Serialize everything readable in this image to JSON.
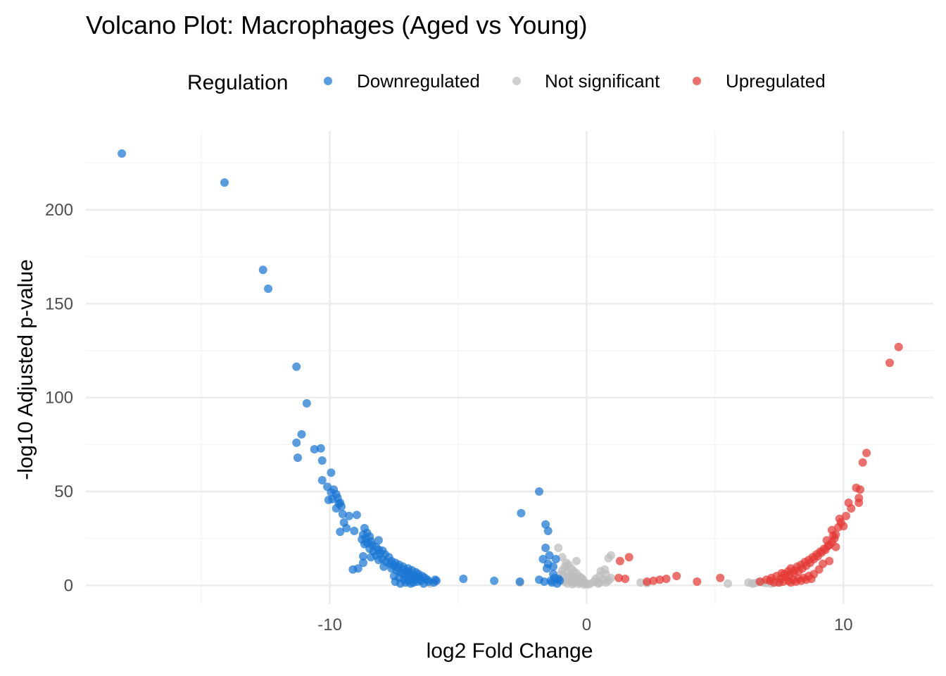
{
  "chart_data": {
    "type": "scatter",
    "title": "Volcano Plot: Macrophages (Aged vs Young)",
    "xlabel": "log2 Fold Change",
    "ylabel": "-log10 Adjusted p-value",
    "xlim": [
      -19.5,
      13.5
    ],
    "ylim": [
      -10,
      242
    ],
    "x_ticks": [
      -10,
      0,
      10
    ],
    "y_ticks": [
      0,
      50,
      100,
      150,
      200
    ],
    "grid": true,
    "legend": {
      "title": "Regulation",
      "position": "top",
      "entries": [
        "Downregulated",
        "Not significant",
        "Upregulated"
      ]
    },
    "colors": {
      "Downregulated": "#1976d2",
      "Not significant": "#bdbdbd",
      "Upregulated": "#e53935"
    },
    "series": [
      {
        "name": "Downregulated",
        "color": "#1976d2",
        "points": [
          [
            -18.1,
            230
          ],
          [
            -14.1,
            214.5
          ],
          [
            -12.6,
            168
          ],
          [
            -12.4,
            158
          ],
          [
            -11.3,
            116.5
          ],
          [
            -10.9,
            97
          ],
          [
            -11.1,
            80.5
          ],
          [
            -11.3,
            76
          ],
          [
            -11.25,
            68
          ],
          [
            -10.6,
            72.5
          ],
          [
            -10.35,
            73
          ],
          [
            -10.3,
            66.5
          ],
          [
            -10.3,
            56
          ],
          [
            -9.95,
            60
          ],
          [
            -10.1,
            52.5
          ],
          [
            -9.85,
            51
          ],
          [
            -9.95,
            49.5
          ],
          [
            -9.9,
            46
          ],
          [
            -10.05,
            45.5
          ],
          [
            -9.75,
            48.5
          ],
          [
            -9.7,
            46.5
          ],
          [
            -9.6,
            44
          ],
          [
            -9.55,
            42
          ],
          [
            -9.75,
            41
          ],
          [
            -9.65,
            43.5
          ],
          [
            -9.5,
            38
          ],
          [
            -9.25,
            37
          ],
          [
            -9.45,
            33.5
          ],
          [
            -8.95,
            37.5
          ],
          [
            -9.6,
            28.5
          ],
          [
            -9.35,
            30.5
          ],
          [
            -9.05,
            29
          ],
          [
            -8.65,
            30.5
          ],
          [
            -8.55,
            28
          ],
          [
            -8.7,
            27
          ],
          [
            -8.45,
            26
          ],
          [
            -8.6,
            25
          ],
          [
            -8.75,
            24.5
          ],
          [
            -8.4,
            23.5
          ],
          [
            -8.55,
            22.5
          ],
          [
            -8.35,
            21.5
          ],
          [
            -8.65,
            22
          ],
          [
            -8.1,
            24
          ],
          [
            -8.2,
            20.5
          ],
          [
            -8.45,
            19.5
          ],
          [
            -8.1,
            19
          ],
          [
            -8.3,
            18
          ],
          [
            -7.95,
            18.5
          ],
          [
            -8.05,
            17
          ],
          [
            -8.2,
            16
          ],
          [
            -7.85,
            16.5
          ],
          [
            -8.7,
            15.5
          ],
          [
            -8.4,
            15
          ],
          [
            -7.7,
            15
          ],
          [
            -7.95,
            14
          ],
          [
            -8.1,
            13.5
          ],
          [
            -7.6,
            13
          ],
          [
            -7.8,
            12.5
          ],
          [
            -7.45,
            12
          ],
          [
            -7.65,
            11.5
          ],
          [
            -7.3,
            11
          ],
          [
            -7.5,
            10.5
          ],
          [
            -7.9,
            10
          ],
          [
            -7.15,
            10
          ],
          [
            -7.35,
            9.5
          ],
          [
            -7.6,
            9
          ],
          [
            -6.95,
            9
          ],
          [
            -7.1,
            8.5
          ],
          [
            -7.4,
            8
          ],
          [
            -6.8,
            8
          ],
          [
            -7.0,
            7.5
          ],
          [
            -7.25,
            7
          ],
          [
            -6.65,
            7
          ],
          [
            -6.9,
            6.5
          ],
          [
            -7.15,
            6
          ],
          [
            -6.55,
            6
          ],
          [
            -6.75,
            5.5
          ],
          [
            -7.5,
            5
          ],
          [
            -7.0,
            5
          ],
          [
            -6.4,
            5
          ],
          [
            -6.6,
            4.5
          ],
          [
            -6.85,
            4
          ],
          [
            -7.3,
            4
          ],
          [
            -6.3,
            4
          ],
          [
            -6.5,
            3.5
          ],
          [
            -6.7,
            3
          ],
          [
            -7.1,
            3
          ],
          [
            -6.2,
            3
          ],
          [
            -6.45,
            2.5
          ],
          [
            -6.95,
            2.5
          ],
          [
            -7.45,
            2
          ],
          [
            -6.6,
            2
          ],
          [
            -6.15,
            2
          ],
          [
            -7.05,
            1.5
          ],
          [
            -6.75,
            1.5
          ],
          [
            -7.25,
            1
          ],
          [
            -6.35,
            1
          ],
          [
            -6.85,
            1
          ],
          [
            -8.9,
            9
          ],
          [
            -8.7,
            12
          ],
          [
            -9.1,
            8.5
          ],
          [
            -5.9,
            3
          ],
          [
            -5.85,
            2.5
          ],
          [
            -5.95,
            1.5
          ],
          [
            -4.8,
            3.5
          ],
          [
            -3.6,
            2.5
          ],
          [
            -2.6,
            2
          ],
          [
            -2.55,
            38.5
          ],
          [
            -1.85,
            50
          ],
          [
            -1.6,
            32.5
          ],
          [
            -1.5,
            29
          ],
          [
            -1.6,
            20
          ],
          [
            -1.45,
            16
          ],
          [
            -1.7,
            14
          ],
          [
            -1.5,
            11.5
          ],
          [
            -1.55,
            9
          ],
          [
            -1.85,
            3
          ],
          [
            -1.65,
            2
          ],
          [
            -1.4,
            2.5
          ],
          [
            -1.2,
            14
          ],
          [
            -1.3,
            10
          ],
          [
            -1.05,
            2.5
          ],
          [
            -1.3,
            6
          ],
          [
            -1.25,
            4
          ],
          [
            -1.1,
            3.5
          ],
          [
            -1.35,
            1.5
          ],
          [
            -1.15,
            1
          ]
        ]
      },
      {
        "name": "Not significant",
        "color": "#bdbdbd",
        "points": [
          [
            -6.1,
            1
          ],
          [
            -2.6,
            1.5
          ],
          [
            -1.1,
            20
          ],
          [
            -0.95,
            15
          ],
          [
            -0.8,
            12
          ],
          [
            -0.7,
            11
          ],
          [
            -0.85,
            10
          ],
          [
            -0.6,
            9
          ],
          [
            -0.95,
            8
          ],
          [
            -0.5,
            7.5
          ],
          [
            -0.75,
            7
          ],
          [
            -1.0,
            6
          ],
          [
            -0.4,
            6.5
          ],
          [
            -0.65,
            5.5
          ],
          [
            -0.9,
            5
          ],
          [
            -0.3,
            5
          ],
          [
            -0.55,
            4.5
          ],
          [
            -0.8,
            4
          ],
          [
            -0.2,
            4
          ],
          [
            -0.45,
            3.5
          ],
          [
            -0.7,
            3
          ],
          [
            -1.0,
            3
          ],
          [
            -0.15,
            3
          ],
          [
            -0.35,
            2.5
          ],
          [
            -0.6,
            2
          ],
          [
            -0.85,
            2
          ],
          [
            -0.1,
            2
          ],
          [
            -0.25,
            1.5
          ],
          [
            -0.5,
            1.5
          ],
          [
            -0.75,
            1
          ],
          [
            -0.05,
            1
          ],
          [
            -0.3,
            0.8
          ],
          [
            -0.55,
            0.6
          ],
          [
            0.05,
            0.5
          ],
          [
            -0.1,
            0.4
          ],
          [
            -0.4,
            13
          ],
          [
            0.95,
            16
          ],
          [
            0.85,
            14.5
          ],
          [
            0.7,
            8.5
          ],
          [
            0.55,
            7.5
          ],
          [
            0.75,
            6
          ],
          [
            0.5,
            5
          ],
          [
            0.95,
            4
          ],
          [
            0.35,
            3.5
          ],
          [
            0.65,
            3
          ],
          [
            0.85,
            2.5
          ],
          [
            0.3,
            2
          ],
          [
            0.5,
            1.5
          ],
          [
            0.75,
            1.5
          ],
          [
            0.15,
            1
          ],
          [
            0.45,
            1
          ],
          [
            2.1,
            1.5
          ],
          [
            2.35,
            1.2
          ],
          [
            5.5,
            1
          ],
          [
            6.3,
            1.5
          ],
          [
            6.55,
            1.2
          ],
          [
            6.7,
            1.8
          ],
          [
            6.85,
            1.5
          ],
          [
            7.0,
            1.2
          ],
          [
            6.45,
            1
          ],
          [
            7.2,
            1
          ],
          [
            7.45,
            1.5
          ]
        ]
      },
      {
        "name": "Upregulated",
        "color": "#e53935",
        "points": [
          [
            1.3,
            13
          ],
          [
            1.65,
            15
          ],
          [
            1.25,
            4
          ],
          [
            1.5,
            3.5
          ],
          [
            2.35,
            2
          ],
          [
            2.6,
            2.5
          ],
          [
            2.85,
            3
          ],
          [
            3.1,
            3.5
          ],
          [
            3.5,
            5
          ],
          [
            4.3,
            2
          ],
          [
            5.2,
            4
          ],
          [
            6.75,
            2
          ],
          [
            7.0,
            3
          ],
          [
            7.2,
            4
          ],
          [
            7.4,
            5
          ],
          [
            7.15,
            2.5
          ],
          [
            7.55,
            3.5
          ],
          [
            7.7,
            6
          ],
          [
            7.85,
            7.5
          ],
          [
            7.6,
            6.5
          ],
          [
            7.95,
            9
          ],
          [
            8.1,
            8
          ],
          [
            7.75,
            4.5
          ],
          [
            8.2,
            10
          ],
          [
            7.9,
            5.5
          ],
          [
            8.35,
            11
          ],
          [
            8.05,
            6.5
          ],
          [
            8.5,
            12.5
          ],
          [
            8.25,
            7.5
          ],
          [
            8.65,
            13.5
          ],
          [
            8.4,
            9
          ],
          [
            8.8,
            15
          ],
          [
            8.55,
            10.5
          ],
          [
            8.95,
            16.5
          ],
          [
            8.7,
            12
          ],
          [
            9.1,
            18
          ],
          [
            8.85,
            14
          ],
          [
            9.25,
            19.5
          ],
          [
            9.0,
            15.5
          ],
          [
            9.4,
            21
          ],
          [
            9.15,
            17.5
          ],
          [
            9.55,
            23
          ],
          [
            9.3,
            19
          ],
          [
            9.65,
            25
          ],
          [
            9.45,
            21.5
          ],
          [
            9.7,
            27
          ],
          [
            9.55,
            29.5
          ],
          [
            9.8,
            31
          ],
          [
            9.9,
            33.5
          ],
          [
            10.0,
            31.5
          ],
          [
            10.1,
            37
          ],
          [
            9.85,
            35.5
          ],
          [
            9.7,
            20.5
          ],
          [
            9.45,
            13
          ],
          [
            9.2,
            11.5
          ],
          [
            9.05,
            8.5
          ],
          [
            8.85,
            6
          ],
          [
            8.65,
            5
          ],
          [
            8.45,
            4
          ],
          [
            8.25,
            3.5
          ],
          [
            8.05,
            3
          ],
          [
            7.85,
            2.5
          ],
          [
            7.65,
            2
          ],
          [
            7.5,
            1.5
          ],
          [
            7.3,
            1.5
          ],
          [
            7.95,
            1.5
          ],
          [
            8.15,
            2
          ],
          [
            8.35,
            2.5
          ],
          [
            8.55,
            3
          ],
          [
            8.75,
            3.5
          ],
          [
            9.35,
            24
          ],
          [
            9.6,
            26.5
          ],
          [
            10.3,
            41
          ],
          [
            10.2,
            44
          ],
          [
            10.6,
            46.5
          ],
          [
            10.5,
            52
          ],
          [
            10.65,
            51
          ],
          [
            10.6,
            44
          ],
          [
            10.75,
            65.5
          ],
          [
            10.9,
            70.5
          ],
          [
            11.8,
            118.5
          ],
          [
            12.15,
            127
          ]
        ]
      }
    ]
  }
}
